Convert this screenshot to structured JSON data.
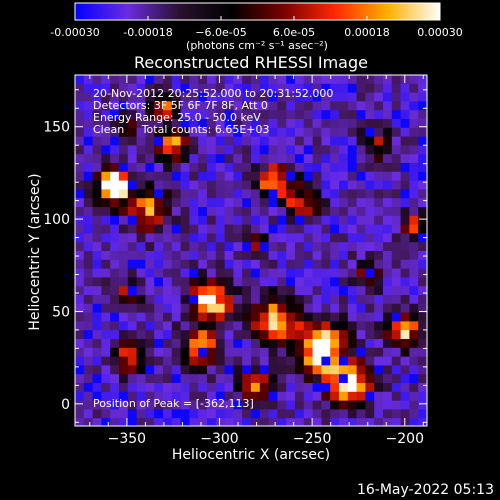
{
  "chart_data": {
    "type": "heatmap",
    "title": "Reconstructed RHESSI Image",
    "xlabel": "Heliocentric X (arcsec)",
    "ylabel": "Heliocentric Y (arcsec)",
    "xlim": [
      -378,
      -188
    ],
    "ylim": [
      -12,
      178
    ],
    "x_ticks": [
      -350,
      -300,
      -250,
      -200
    ],
    "x_tick_labels": [
      "−350",
      "−300",
      "−250",
      "−200"
    ],
    "y_ticks": [
      0,
      50,
      100,
      150
    ],
    "y_tick_labels": [
      "0",
      "50",
      "100",
      "150"
    ],
    "colorbar": {
      "range": [
        -0.0003,
        0.0003
      ],
      "tick_labels": [
        "-0.00030",
        "-0.00018",
        "−6.0e-05",
        "6.0e-05",
        "0.00018",
        "0.00030"
      ],
      "unit_label": "(photons cm⁻² s⁻¹ asec⁻²)",
      "colors": [
        "#0000ff",
        "#6a2ce0",
        "#2a1030",
        "#000000",
        "#7a0000",
        "#ff2a00",
        "#ffb000",
        "#ffffff"
      ]
    },
    "annotations": [
      "20-Nov-2012 20:25:52.000 to 20:31:52.000",
      "Detectors: 3F 5F 6F 7F 8F, Att 0",
      "Energy Range: 25.0 - 50.0 keV",
      "Clean     Total counts: 6.65E+03"
    ],
    "peak_label": "Position of Peak = [-362,113]",
    "peak": [
      -362,
      113
    ],
    "grid": false
  },
  "footer": {
    "timestamp": "16-May-2022 05:13"
  }
}
